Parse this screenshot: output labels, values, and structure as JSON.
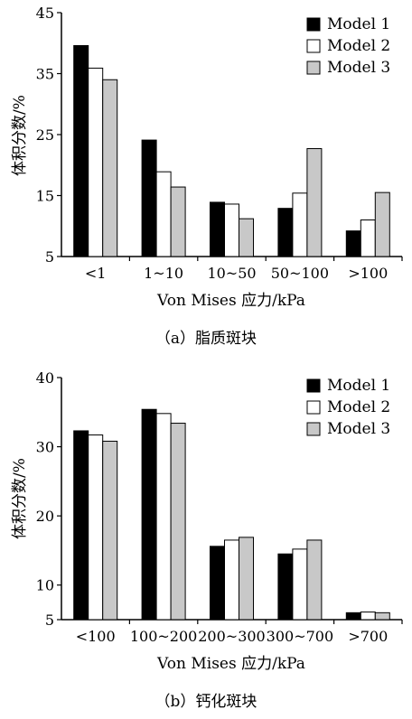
{
  "chart_data": [
    {
      "type": "bar",
      "caption": "（a）脂质斑块",
      "xlabel": "Von Mises 应力/kPa",
      "ylabel": "体积分数/%",
      "ylim": [
        5,
        45
      ],
      "yticks": [
        5,
        15,
        25,
        35,
        45
      ],
      "categories": [
        "<1",
        "1~10",
        "10~50",
        "50~100",
        ">100"
      ],
      "legend_position": "top-right",
      "grid": false,
      "series": [
        {
          "name": "Model 1",
          "color": "#000000",
          "values": [
            39.6,
            24.1,
            13.9,
            12.9,
            9.2
          ]
        },
        {
          "name": "Model 2",
          "color": "#ffffff",
          "values": [
            35.9,
            18.9,
            13.6,
            15.4,
            11.0
          ]
        },
        {
          "name": "Model 3",
          "color": "#c8c8c8",
          "values": [
            34.0,
            16.4,
            11.2,
            22.7,
            15.5
          ]
        }
      ]
    },
    {
      "type": "bar",
      "caption": "（b）钙化斑块",
      "xlabel": "Von Mises 应力/kPa",
      "ylabel": "体积分数/%",
      "ylim": [
        5,
        40
      ],
      "yticks": [
        5,
        10,
        20,
        30,
        40
      ],
      "categories": [
        "<100",
        "100~200",
        "200~300",
        "300~700",
        ">700"
      ],
      "legend_position": "top-right",
      "grid": false,
      "series": [
        {
          "name": "Model 1",
          "color": "#000000",
          "values": [
            32.3,
            35.4,
            15.6,
            14.5,
            6.0
          ]
        },
        {
          "name": "Model 2",
          "color": "#ffffff",
          "values": [
            31.7,
            34.8,
            16.5,
            15.2,
            6.1
          ]
        },
        {
          "name": "Model 3",
          "color": "#c8c8c8",
          "values": [
            30.8,
            33.4,
            16.9,
            16.5,
            6.0
          ]
        }
      ]
    }
  ]
}
